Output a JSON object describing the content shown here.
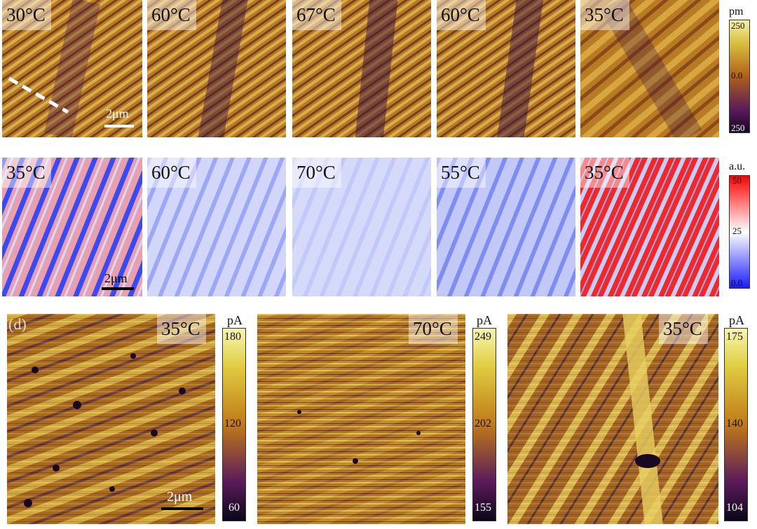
{
  "row1": {
    "temps": [
      "30°C",
      "60°C",
      "67°C",
      "60°C",
      "35°C"
    ],
    "scale_label": "2μm",
    "colorbar": {
      "unit": "pm",
      "max": "250",
      "mid": "0.0",
      "min": "250"
    }
  },
  "row2": {
    "temps": [
      "35°C",
      "60°C",
      "70°C",
      "55°C",
      "35°C"
    ],
    "scale_label": "2μm",
    "colorbar": {
      "unit": "a.u.",
      "max": "50",
      "mid": "25",
      "min": "0.0"
    }
  },
  "row3": {
    "panel_label": "(d)",
    "temps": [
      "35°C",
      "70°C",
      "35°C"
    ],
    "scale_label": "2μm",
    "colorbars": [
      {
        "unit": "pA",
        "max": "180",
        "mid": "120",
        "min": "60"
      },
      {
        "unit": "pA",
        "max": "249",
        "mid": "202",
        "min": "155"
      },
      {
        "unit": "pA",
        "max": "175",
        "mid": "140",
        "min": "104"
      }
    ]
  },
  "colors": {
    "afm_light": "#d9b24a",
    "afm_mid": "#a8661a",
    "afm_dark": "#3a1050",
    "pfm_blue": "#4a5ff0",
    "pfm_red": "#f03030",
    "pfm_white": "#f4f4ff"
  }
}
